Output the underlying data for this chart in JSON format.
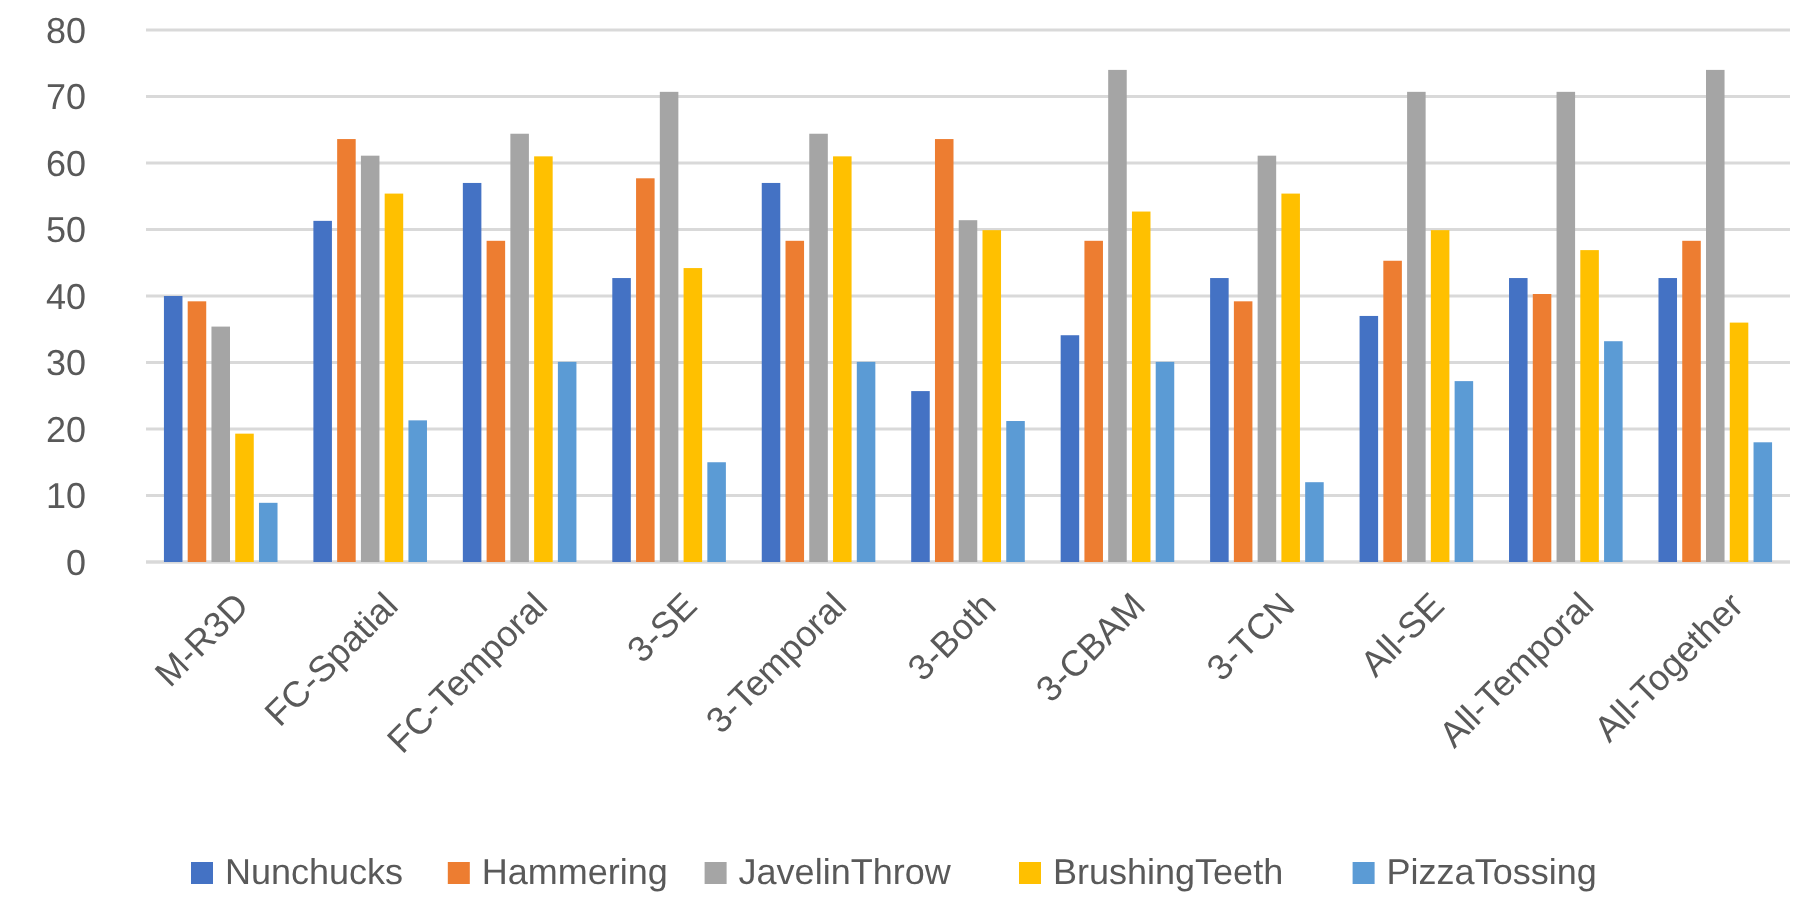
{
  "chart_data": {
    "type": "bar",
    "categories": [
      "M-R3D",
      "FC-Spatial",
      "FC-Temporal",
      "3-SE",
      "3-Temporal",
      "3-Both",
      "3-CBAM",
      "3-TCN",
      "All-SE",
      "All-Temporal",
      "All-Together"
    ],
    "series": [
      {
        "name": "Nunchucks",
        "color": "#4472c4",
        "values": [
          40,
          51.3,
          57,
          42.7,
          57,
          25.7,
          34.1,
          42.7,
          37,
          42.7,
          42.7
        ]
      },
      {
        "name": "Hammering",
        "color": "#ed7d31",
        "values": [
          39.2,
          63.6,
          48.3,
          57.7,
          48.3,
          63.6,
          48.3,
          39.2,
          45.3,
          40.3,
          48.3
        ]
      },
      {
        "name": "JavelinThrow",
        "color": "#a5a5a5",
        "values": [
          35.4,
          61.1,
          64.4,
          70.7,
          64.4,
          51.4,
          74,
          61.1,
          70.7,
          70.7,
          74
        ]
      },
      {
        "name": "BrushingTeeth",
        "color": "#ffc000",
        "values": [
          19.3,
          55.4,
          61,
          44.2,
          61,
          49.9,
          52.7,
          55.4,
          49.9,
          46.9,
          36
        ]
      },
      {
        "name": "PizzaTossing",
        "color": "#5b9bd5",
        "values": [
          8.9,
          21.3,
          30.1,
          15,
          30.1,
          21.2,
          30.1,
          12,
          27.2,
          33.2,
          18
        ]
      }
    ],
    "ylim": [
      0,
      80
    ],
    "yticks": [
      0,
      10,
      20,
      30,
      40,
      50,
      60,
      70,
      80
    ],
    "grid": "y",
    "legend": "bottom"
  }
}
